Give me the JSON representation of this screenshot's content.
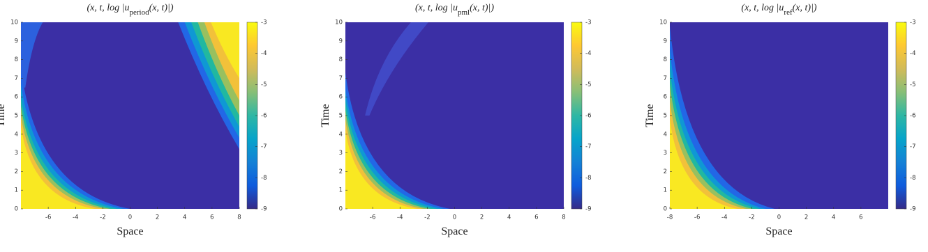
{
  "chart_data": [
    {
      "type": "heatmap",
      "title": {
        "prefix": "(x, t, log |u",
        "subscript": "period",
        "suffix": "(x, t)|)"
      },
      "xlabel": "Space",
      "ylabel": "Time",
      "xlim": [
        -8,
        8
      ],
      "ylim": [
        0,
        10
      ],
      "xticks": [
        -6,
        -4,
        -2,
        0,
        2,
        4,
        6,
        8
      ],
      "yticks": [
        0,
        1,
        2,
        3,
        4,
        5,
        6,
        7,
        8,
        9,
        10
      ],
      "colorbar": {
        "clim": [
          -9,
          -3
        ],
        "ticks": [
          -3,
          -4,
          -5,
          -6,
          -7,
          -8,
          -9
        ]
      }
    },
    {
      "type": "heatmap",
      "title": {
        "prefix": "(x, t, log |u",
        "subscript": "pml",
        "suffix": "(x, t)|)"
      },
      "xlabel": "Space",
      "ylabel": "Time",
      "xlim": [
        -8,
        8
      ],
      "ylim": [
        0,
        10
      ],
      "xticks": [
        -6,
        -4,
        -2,
        0,
        2,
        4,
        6,
        8
      ],
      "yticks": [
        0,
        1,
        2,
        3,
        4,
        5,
        6,
        7,
        8,
        9,
        10
      ],
      "colorbar": {
        "clim": [
          -9,
          -3
        ],
        "ticks": [
          -3,
          -4,
          -5,
          -6,
          -7,
          -8,
          -9
        ]
      }
    },
    {
      "type": "heatmap",
      "title": {
        "prefix": "(x, t, log |u",
        "subscript": "ref",
        "suffix": "(x, t)|)"
      },
      "xlabel": "Space",
      "ylabel": "Time",
      "xlim": [
        -8,
        8
      ],
      "ylim": [
        0,
        10
      ],
      "xticks": [
        -8,
        -6,
        -4,
        -2,
        0,
        2,
        4,
        6
      ],
      "yticks": [
        0,
        1,
        2,
        3,
        4,
        5,
        6,
        7,
        8,
        9,
        10
      ],
      "colorbar": {
        "clim": [
          -9,
          -3
        ],
        "ticks": [
          -3,
          -4,
          -5,
          -6,
          -7,
          -8,
          -9
        ]
      }
    }
  ]
}
